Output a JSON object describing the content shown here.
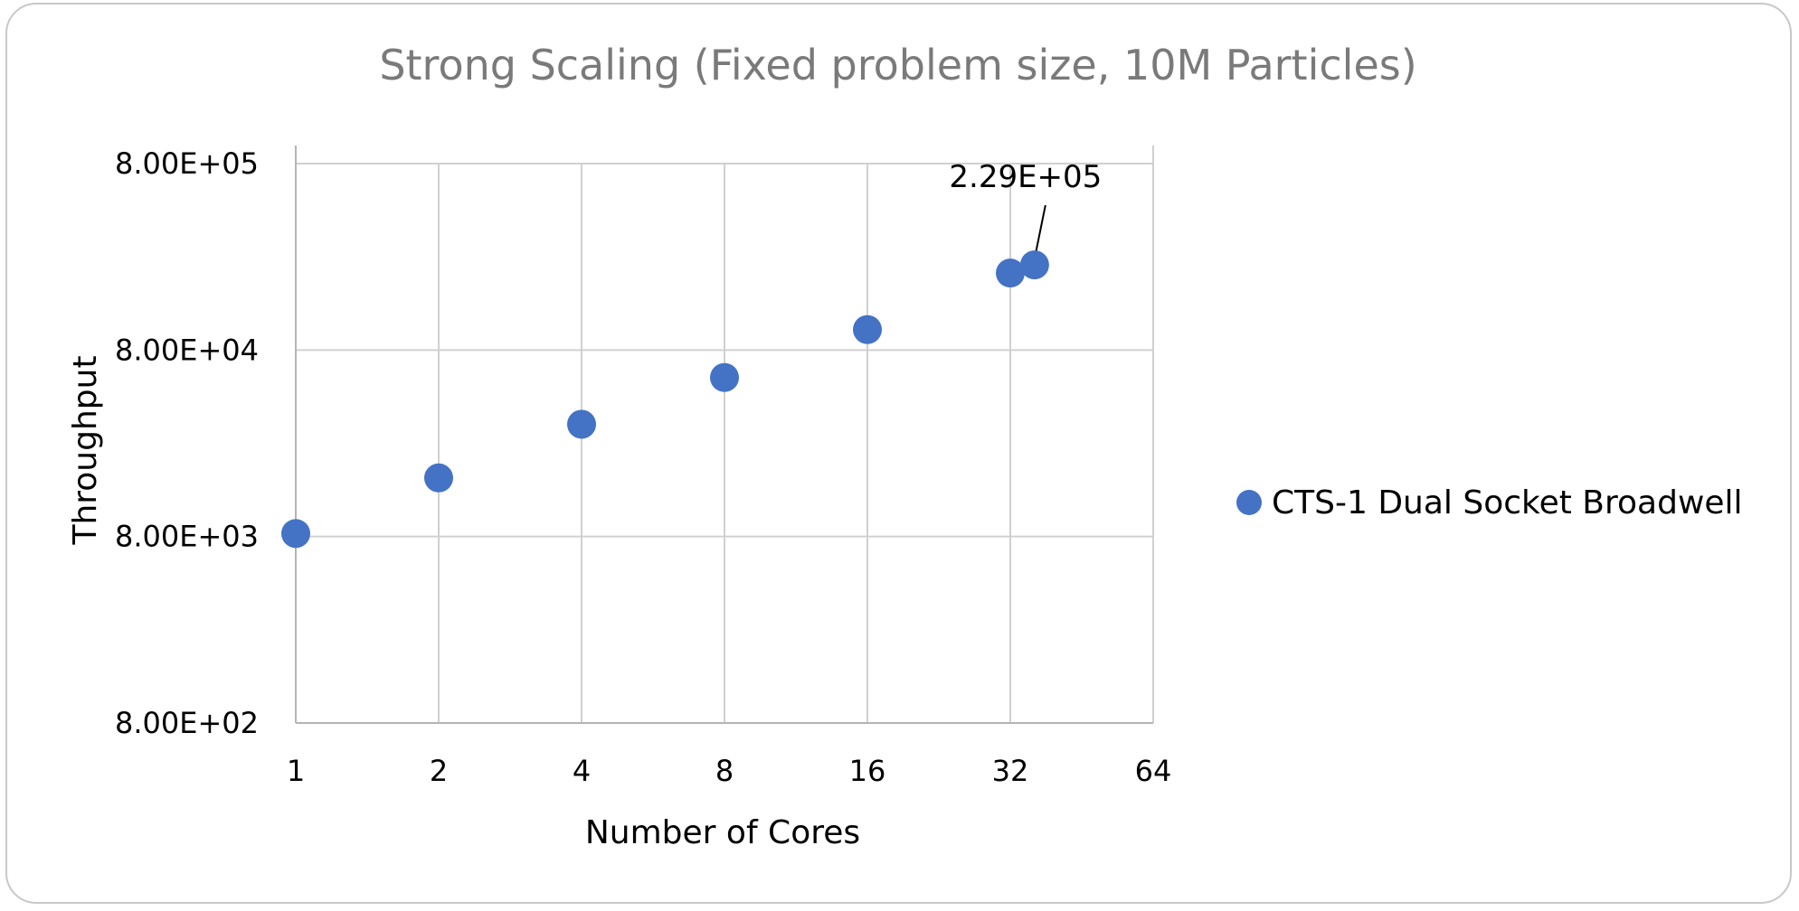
{
  "chart_data": {
    "type": "scatter",
    "title": "Strong Scaling (Fixed problem size, 10M Particles)",
    "xlabel": "Number of Cores",
    "ylabel": "Throughput",
    "x_scale": "log2",
    "y_scale": "log10",
    "xlim": [
      1,
      64
    ],
    "ylim": [
      800,
      800000
    ],
    "x_ticks": [
      "1",
      "2",
      "4",
      "8",
      "16",
      "32",
      "64"
    ],
    "y_ticks": [
      "8.00E+02",
      "8.00E+03",
      "8.00E+04",
      "8.00E+05"
    ],
    "grid": true,
    "legend_position": "right",
    "series": [
      {
        "name": "CTS-1 Dual Socket Broadwell",
        "color": "#4472c4",
        "x": [
          1,
          2,
          4,
          8,
          16,
          32,
          36
        ],
        "y": [
          8300,
          16500,
          32000,
          57000,
          103000,
          207000,
          229000
        ]
      }
    ],
    "annotations": [
      {
        "text": "2.29E+05",
        "x": 36,
        "y": 229000
      }
    ]
  }
}
